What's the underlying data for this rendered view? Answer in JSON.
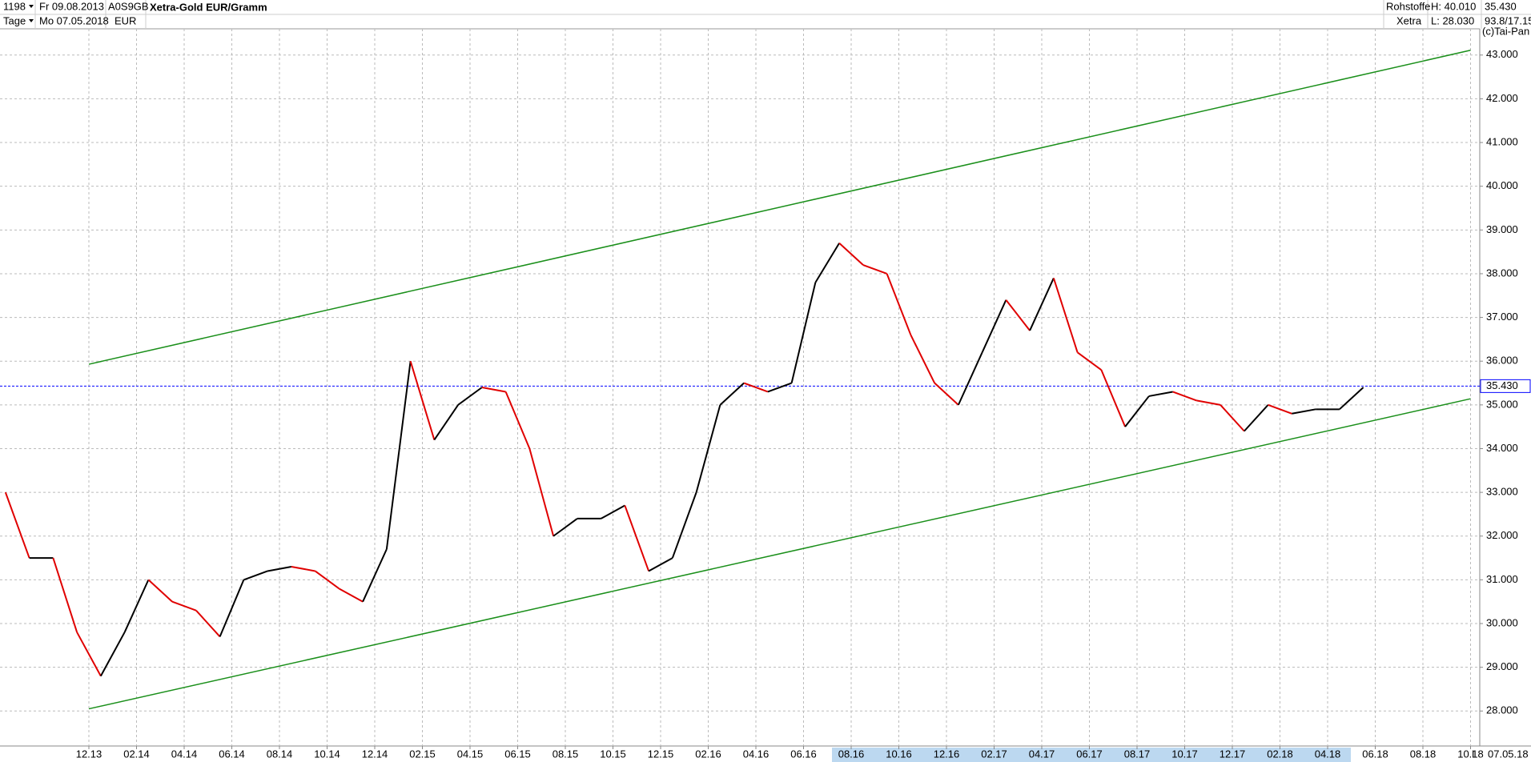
{
  "header": {
    "count": "1198",
    "from": "Fr 09.08.2013",
    "period": "Tage",
    "to": "Mo 07.05.2018",
    "isin": "A0S9GB",
    "currency": "EUR",
    "title": "Xetra-Gold EUR/Gramm",
    "group": "Rohstoffe",
    "exchange": "Xetra",
    "high": "H: 40.010",
    "low": "L: 28.030",
    "last": "35.430",
    "volume": "93.8/17.15",
    "copyright": "(c)Tai-Pan"
  },
  "chart_data": {
    "type": "line",
    "x": [
      "08.13",
      "09.13",
      "10.13",
      "11.13",
      "12.13",
      "01.14",
      "02.14",
      "03.14",
      "04.14",
      "05.14",
      "06.14",
      "07.14",
      "08.14",
      "09.14",
      "10.14",
      "11.14",
      "12.14",
      "01.15",
      "02.15",
      "03.15",
      "04.15",
      "05.15",
      "06.15",
      "07.15",
      "08.15",
      "09.15",
      "10.15",
      "11.15",
      "12.15",
      "01.16",
      "02.16",
      "03.16",
      "04.16",
      "05.16",
      "06.16",
      "07.16",
      "08.16",
      "09.16",
      "10.16",
      "11.16",
      "12.16",
      "01.17",
      "02.17",
      "03.17",
      "04.17",
      "05.17",
      "06.17",
      "07.17",
      "08.17",
      "09.17",
      "10.17",
      "11.17",
      "12.17",
      "01.18",
      "02.18",
      "03.18",
      "04.18",
      "05.18"
    ],
    "series": [
      {
        "color": "#000000",
        "down_color": "#e00000",
        "values": [
          33.0,
          31.5,
          31.5,
          29.8,
          28.8,
          29.8,
          31.0,
          30.5,
          30.3,
          29.7,
          31.0,
          31.2,
          31.3,
          31.2,
          30.8,
          30.5,
          31.7,
          36.0,
          34.2,
          35.0,
          35.4,
          35.3,
          34.0,
          32.0,
          32.4,
          32.4,
          32.7,
          31.2,
          31.5,
          33.0,
          35.0,
          35.5,
          35.3,
          35.5,
          37.8,
          38.7,
          38.2,
          38.0,
          36.6,
          35.5,
          35.0,
          36.2,
          37.4,
          36.7,
          37.9,
          36.2,
          35.8,
          34.5,
          35.2,
          35.3,
          35.1,
          35.0,
          34.4,
          35.0,
          34.8,
          34.9,
          34.9,
          35.4
        ]
      }
    ],
    "trendlines": [
      {
        "color": "#1a8f1a",
        "x": [
          "12.13",
          "10.18"
        ],
        "y": [
          35.93,
          43.11
        ]
      },
      {
        "color": "#1a8f1a",
        "x": [
          "12.13",
          "10.18"
        ],
        "y": [
          28.05,
          35.14
        ]
      }
    ],
    "last_line": {
      "color": "#0000ff",
      "value": 35.43,
      "label": "35.430"
    },
    "ylim": [
      27.2,
      43.6
    ],
    "yticks": [
      {
        "value": 28,
        "label": "28.000"
      },
      {
        "value": 29,
        "label": "29.000"
      },
      {
        "value": 30,
        "label": "30.000"
      },
      {
        "value": 31,
        "label": "31.000"
      },
      {
        "value": 32,
        "label": "32.000"
      },
      {
        "value": 33,
        "label": "33.000"
      },
      {
        "value": 34,
        "label": "34.000"
      },
      {
        "value": 35,
        "label": "35.000"
      },
      {
        "value": 36,
        "label": "36.000"
      },
      {
        "value": 37,
        "label": "37.000"
      },
      {
        "value": 38,
        "label": "38.000"
      },
      {
        "value": 39,
        "label": "39.000"
      },
      {
        "value": 40,
        "label": "40.000"
      },
      {
        "value": 41,
        "label": "41.000"
      },
      {
        "value": 42,
        "label": "42.000"
      },
      {
        "value": 43,
        "label": "43.000"
      }
    ],
    "xticks": [
      "12.13",
      "02.14",
      "04.14",
      "06.14",
      "08.14",
      "10.14",
      "12.14",
      "02.15",
      "04.15",
      "06.15",
      "08.15",
      "10.15",
      "12.15",
      "02.16",
      "04.16",
      "06.16",
      "08.16",
      "10.16",
      "12.16",
      "02.17",
      "04.17",
      "06.17",
      "08.17",
      "10.17",
      "12.17",
      "02.18",
      "04.18",
      "06.18",
      "08.18",
      "10.18"
    ],
    "current_date": "07.05.18",
    "scale_mode": "L",
    "grid": true
  }
}
